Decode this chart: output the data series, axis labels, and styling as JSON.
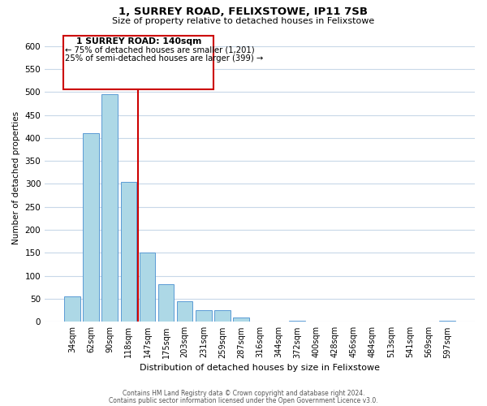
{
  "title": "1, SURREY ROAD, FELIXSTOWE, IP11 7SB",
  "subtitle": "Size of property relative to detached houses in Felixstowe",
  "xlabel": "Distribution of detached houses by size in Felixstowe",
  "ylabel": "Number of detached properties",
  "bar_labels": [
    "34sqm",
    "62sqm",
    "90sqm",
    "118sqm",
    "147sqm",
    "175sqm",
    "203sqm",
    "231sqm",
    "259sqm",
    "287sqm",
    "316sqm",
    "344sqm",
    "372sqm",
    "400sqm",
    "428sqm",
    "456sqm",
    "484sqm",
    "513sqm",
    "541sqm",
    "569sqm",
    "597sqm"
  ],
  "bar_values": [
    55,
    410,
    495,
    305,
    150,
    82,
    44,
    25,
    25,
    10,
    0,
    0,
    2,
    0,
    0,
    0,
    0,
    0,
    0,
    0,
    2
  ],
  "bar_color": "#add8e6",
  "bar_edge_color": "#5b9bd5",
  "vline_color": "#cc0000",
  "vline_x_index": 4,
  "annotation_title": "1 SURREY ROAD: 140sqm",
  "annotation_line1": "← 75% of detached houses are smaller (1,201)",
  "annotation_line2": "25% of semi-detached houses are larger (399) →",
  "annotation_box_color": "#cc0000",
  "ylim": [
    0,
    625
  ],
  "yticks": [
    0,
    50,
    100,
    150,
    200,
    250,
    300,
    350,
    400,
    450,
    500,
    550,
    600
  ],
  "footer1": "Contains HM Land Registry data © Crown copyright and database right 2024.",
  "footer2": "Contains public sector information licensed under the Open Government Licence v3.0.",
  "background_color": "#ffffff",
  "grid_color": "#c8d8e8"
}
